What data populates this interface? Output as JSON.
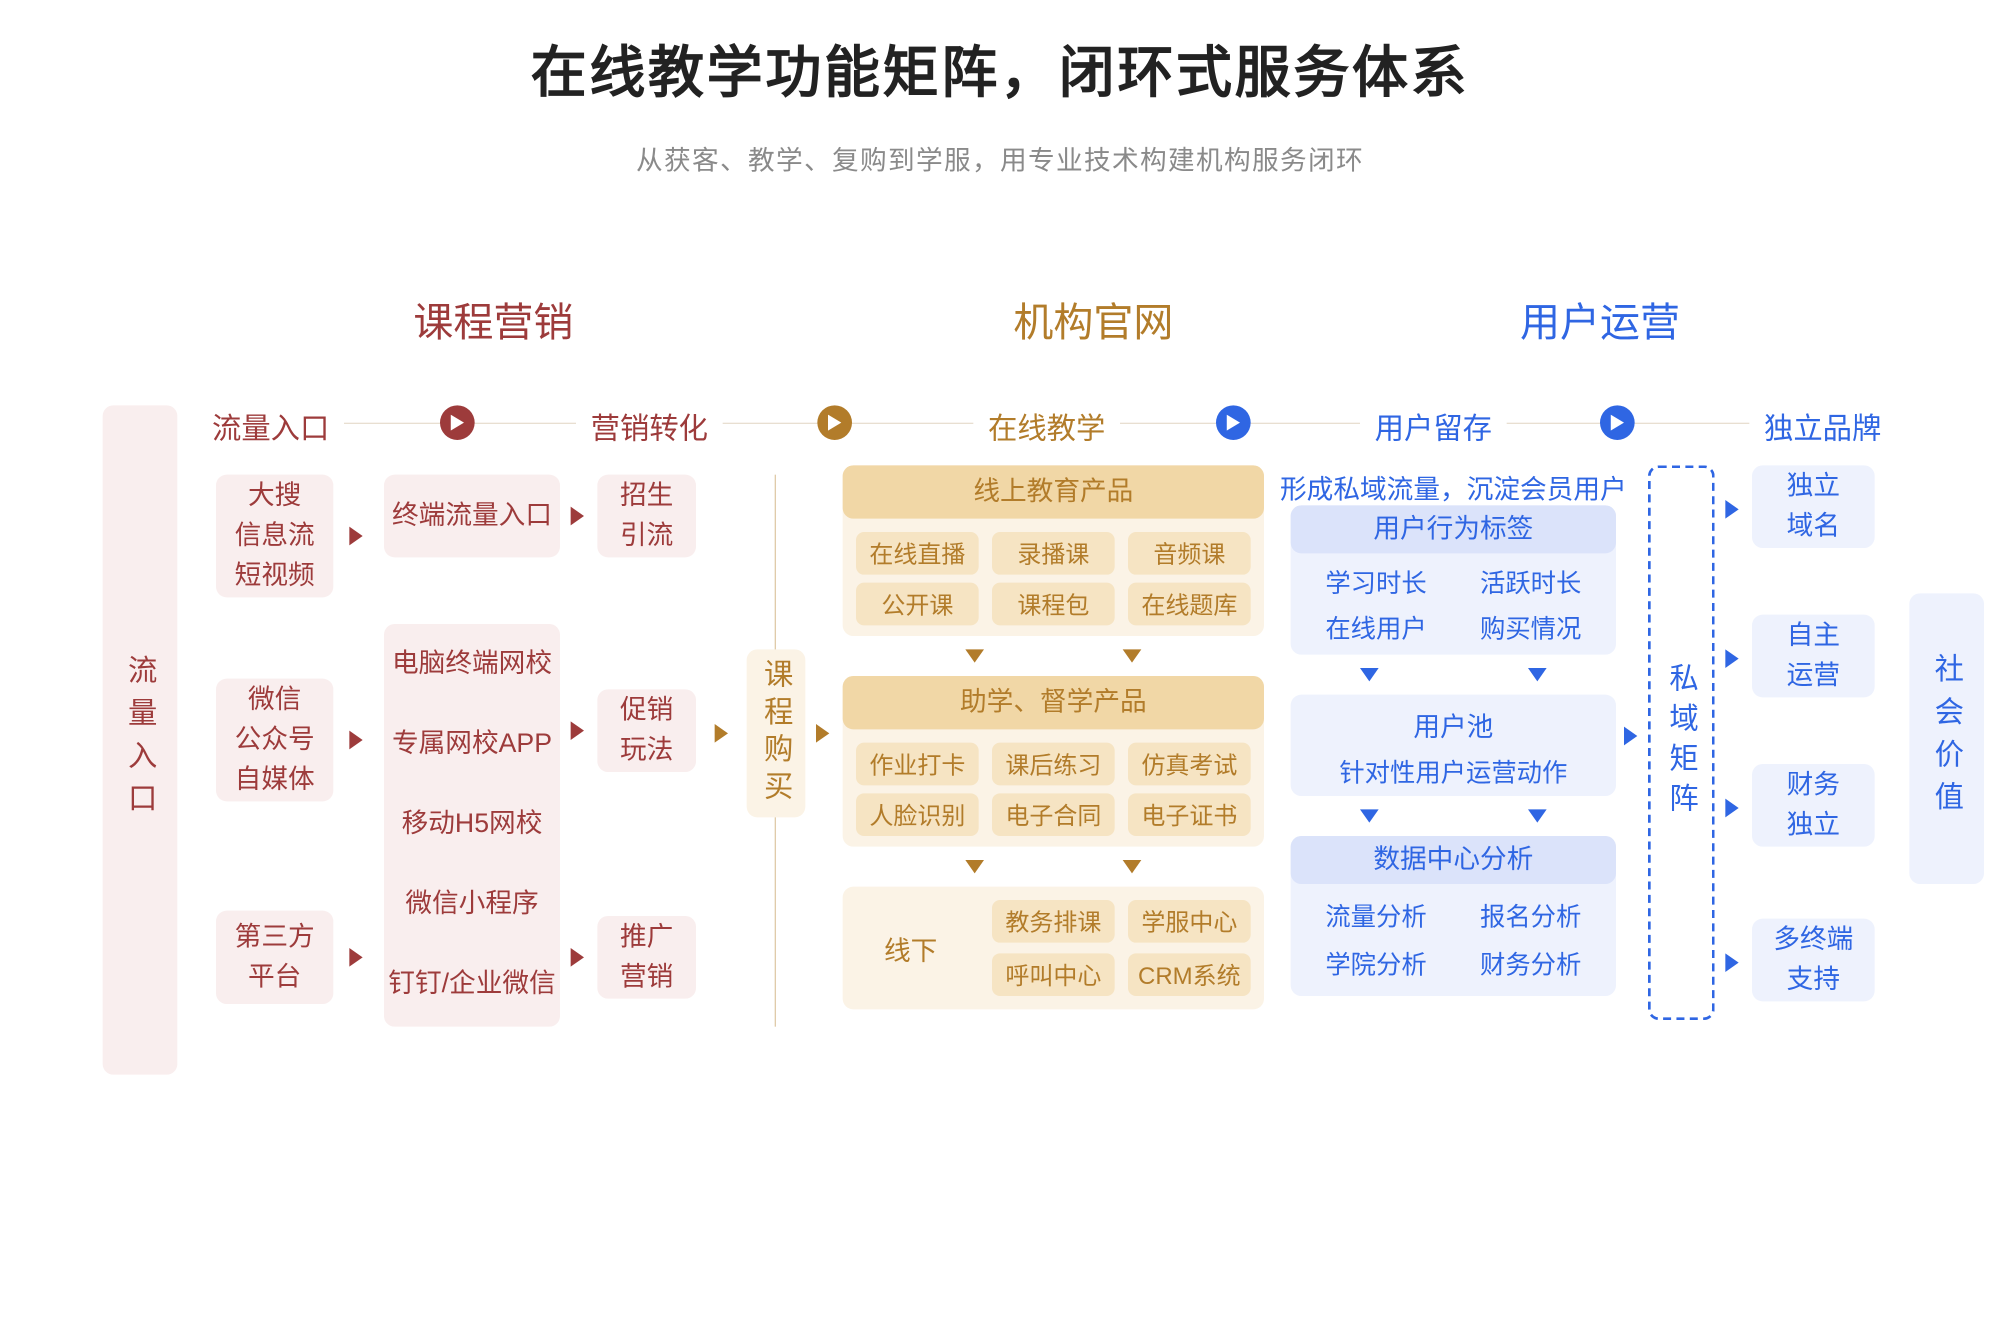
{
  "colors": {
    "red": "#9d3b3b",
    "red_bg": "#f9eeee",
    "red_text": "#9d3b3b",
    "gold": "#b27c2a",
    "gold_bg": "#fbf3e6",
    "gold_mid": "#f6e4c3",
    "gold_deep": "#f1d7a6",
    "gold_text": "#b27c2a",
    "blue": "#2f66e3",
    "blue_bg": "#eef2fd",
    "blue_mid": "#dbe3fa",
    "blue_text": "#2f66e3"
  },
  "title": "在线教学功能矩阵，闭环式服务体系",
  "subtitle": "从获客、教学、复购到学服，用专业技术构建机构服务闭环",
  "sections": {
    "marketing": "课程营销",
    "site": "机构官网",
    "ops": "用户运营"
  },
  "subheaders": {
    "traffic": "流量入口",
    "convert": "营销转化",
    "teach": "在线教学",
    "retain": "用户留存",
    "brand": "独立品牌"
  },
  "left_rail": "流量入口",
  "right_rail": "社会价值",
  "purchase_rail": "课程购买",
  "private_rail": "私域矩阵",
  "marketing": {
    "sources": [
      "大搜\n信息流\n短视频",
      "微信\n公众号\n自媒体",
      "第三方\n平台"
    ],
    "terminals_header": "终端流量入口",
    "terminals": [
      "电脑终端网校",
      "专属网校APP",
      "移动H5网校",
      "微信小程序",
      "钉钉/企业微信"
    ],
    "convert": [
      "招生\n引流",
      "促销\n玩法",
      "推广\n营销"
    ]
  },
  "teaching": {
    "group_online_hdr": "线上教育产品",
    "online": [
      "在线直播",
      "录播课",
      "音频课",
      "公开课",
      "课程包",
      "在线题库"
    ],
    "group_assist_hdr": "助学、督学产品",
    "assist": [
      "作业打卡",
      "课后练习",
      "仿真考试",
      "人脸识别",
      "电子合同",
      "电子证书"
    ],
    "offline_label": "线下",
    "offline": [
      "教务排课",
      "学服中心",
      "呼叫中心",
      "CRM系统"
    ]
  },
  "ops": {
    "top_note": "形成私域流量，沉淀会员用户",
    "tag_hdr": "用户行为标签",
    "tags": [
      "学习时长",
      "活跃时长",
      "在线用户",
      "购买情况"
    ],
    "pool_hdr": "用户池",
    "pool_sub": "针对性用户运营动作",
    "analytics_hdr": "数据中心分析",
    "analytics": [
      "流量分析",
      "报名分析",
      "学院分析",
      "财务分析"
    ]
  },
  "brand": [
    "独立\n域名",
    "自主\n运营",
    "财务\n独立",
    "多终端\n支持"
  ]
}
